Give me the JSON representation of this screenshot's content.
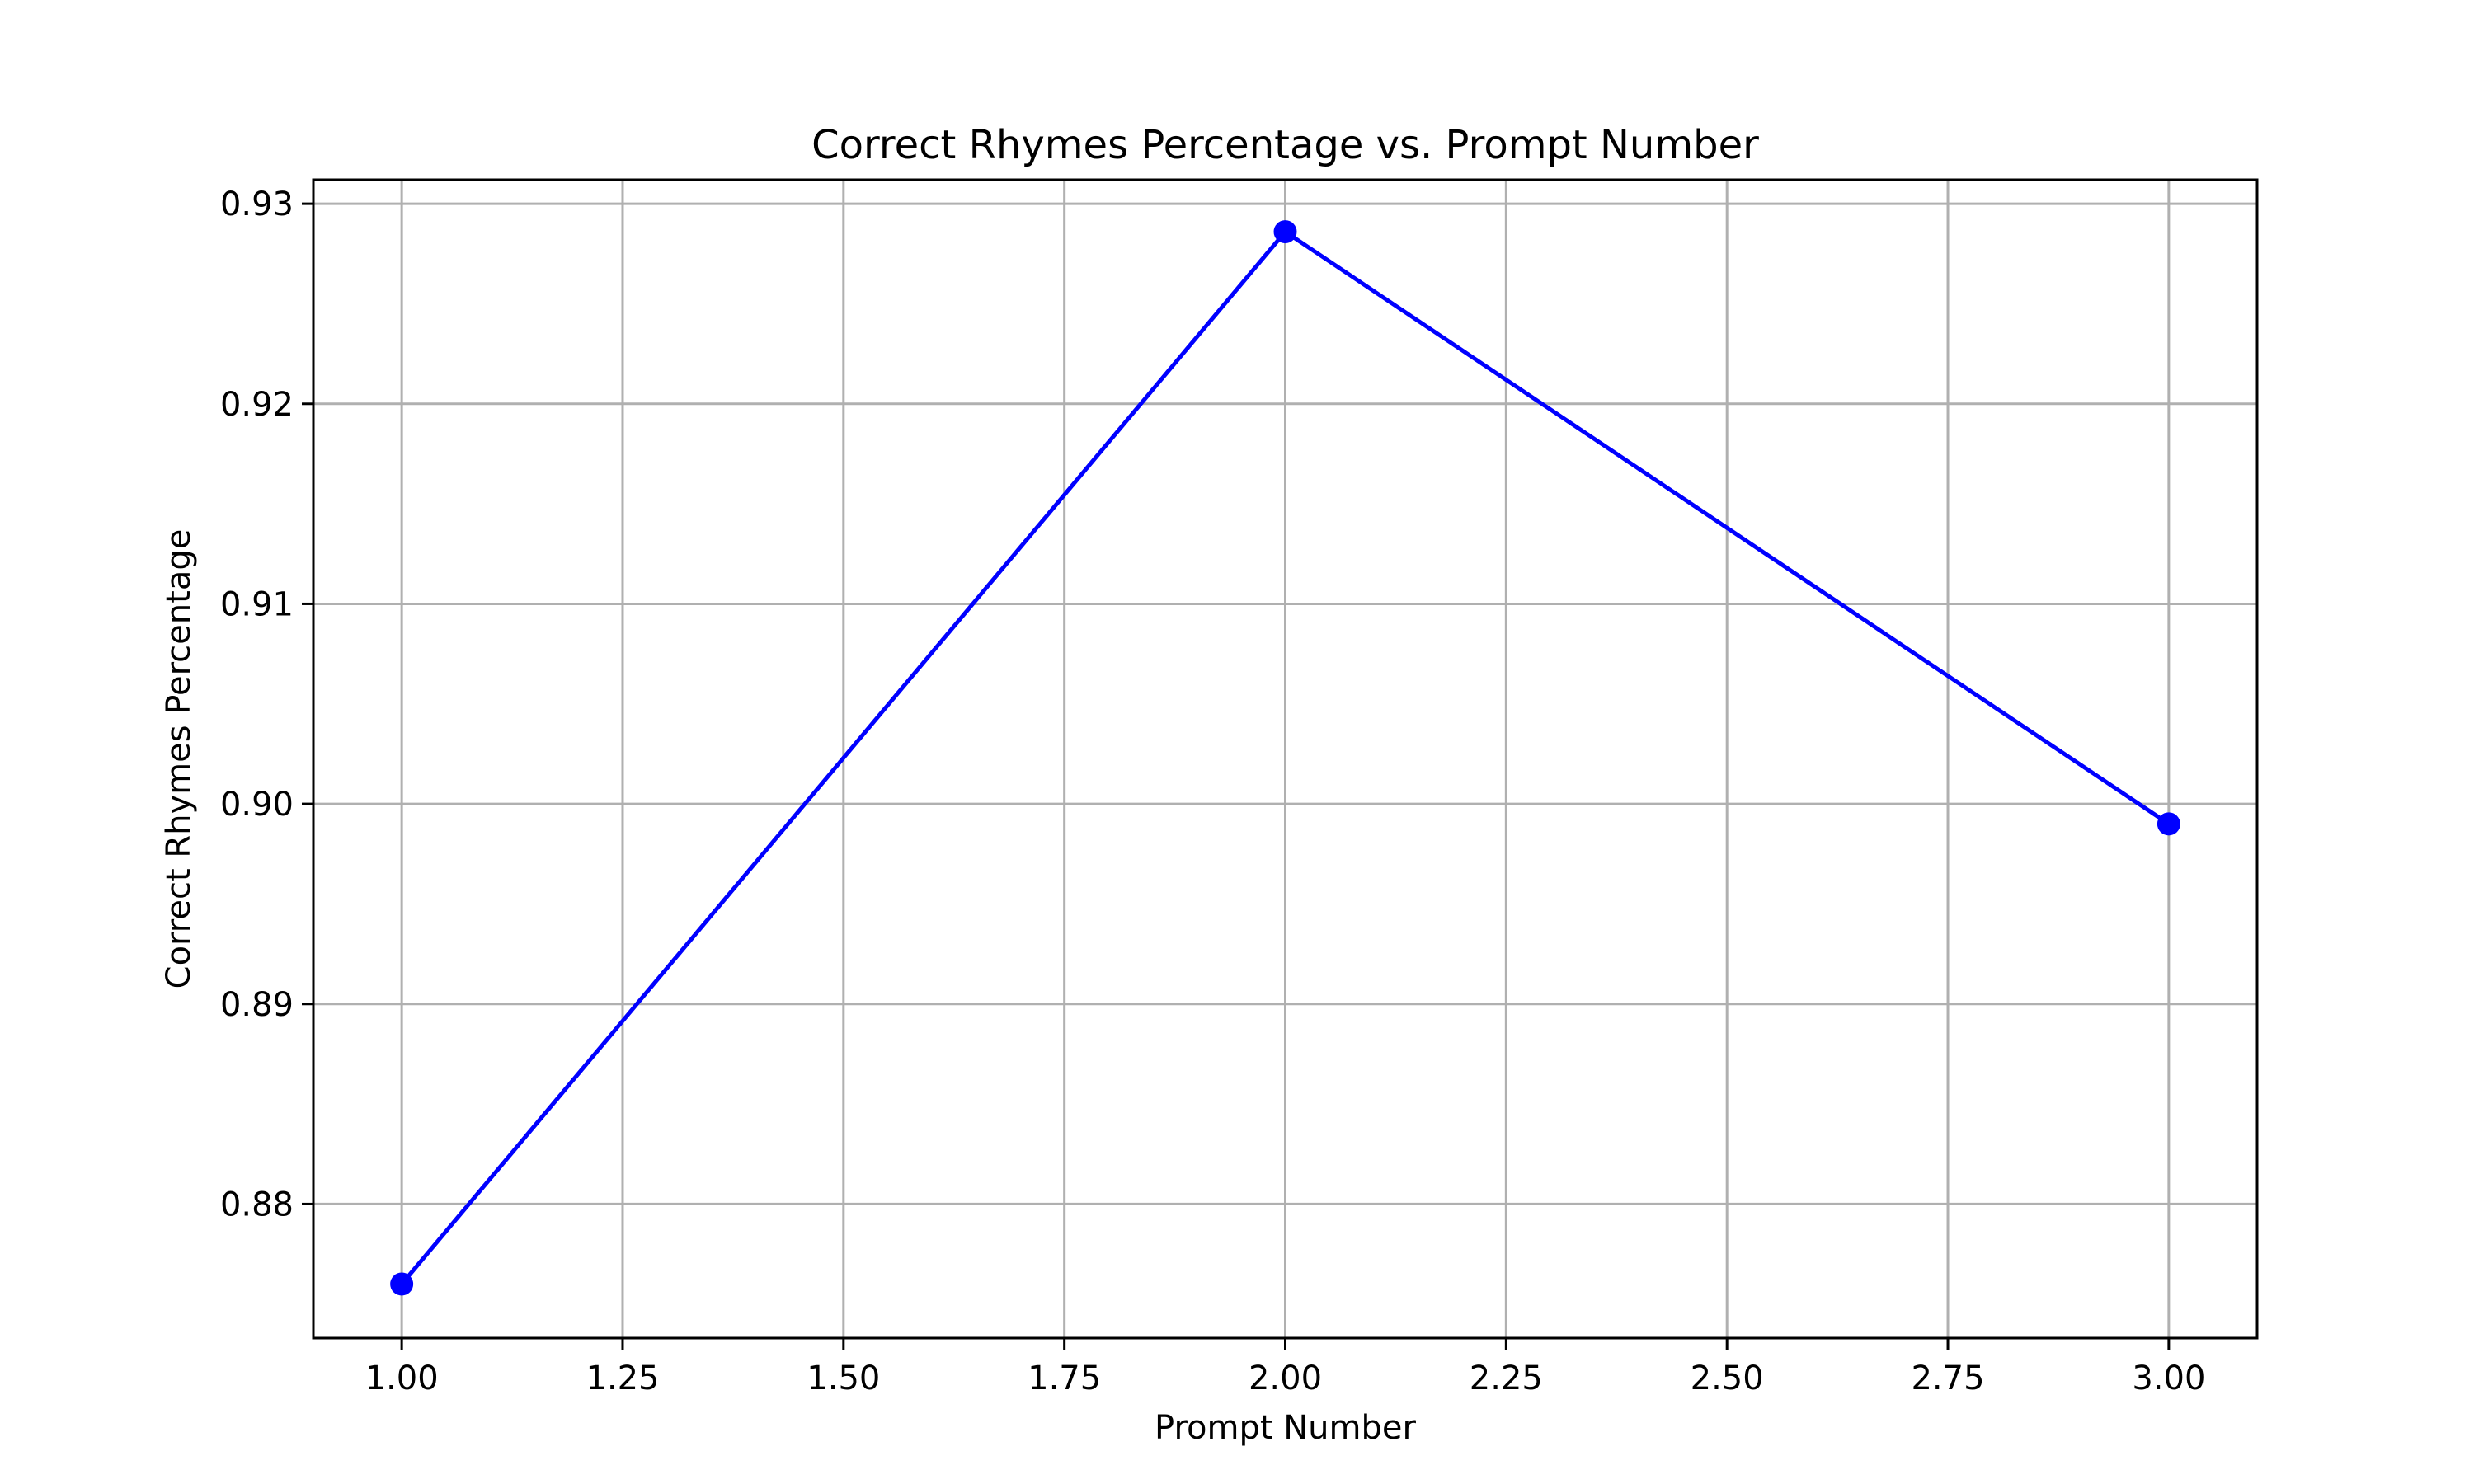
{
  "chart_data": {
    "type": "line",
    "title": "Correct Rhymes Percentage vs. Prompt Number",
    "xlabel": "Prompt Number",
    "ylabel": "Correct Rhymes Percentage",
    "xlim": [
      0.9,
      3.1
    ],
    "ylim": [
      0.8733,
      0.9312
    ],
    "x_ticks": [
      1.0,
      1.25,
      1.5,
      1.75,
      2.0,
      2.25,
      2.5,
      2.75,
      3.0
    ],
    "x_tick_labels": [
      "1.00",
      "1.25",
      "1.50",
      "1.75",
      "2.00",
      "2.25",
      "2.50",
      "2.75",
      "3.00"
    ],
    "y_ticks": [
      0.88,
      0.89,
      0.9,
      0.91,
      0.92,
      0.93
    ],
    "y_tick_labels": [
      "0.88",
      "0.89",
      "0.90",
      "0.91",
      "0.92",
      "0.93"
    ],
    "grid": true,
    "legend": "none",
    "series": [
      {
        "x": [
          1.0,
          2.0,
          3.0
        ],
        "y": [
          0.876,
          0.9286,
          0.899
        ],
        "color": "#0000ff",
        "marker": "circle"
      }
    ],
    "colors": {
      "grid": "#b0b0b0",
      "axes": "#000000",
      "line": "#0000ff"
    }
  }
}
